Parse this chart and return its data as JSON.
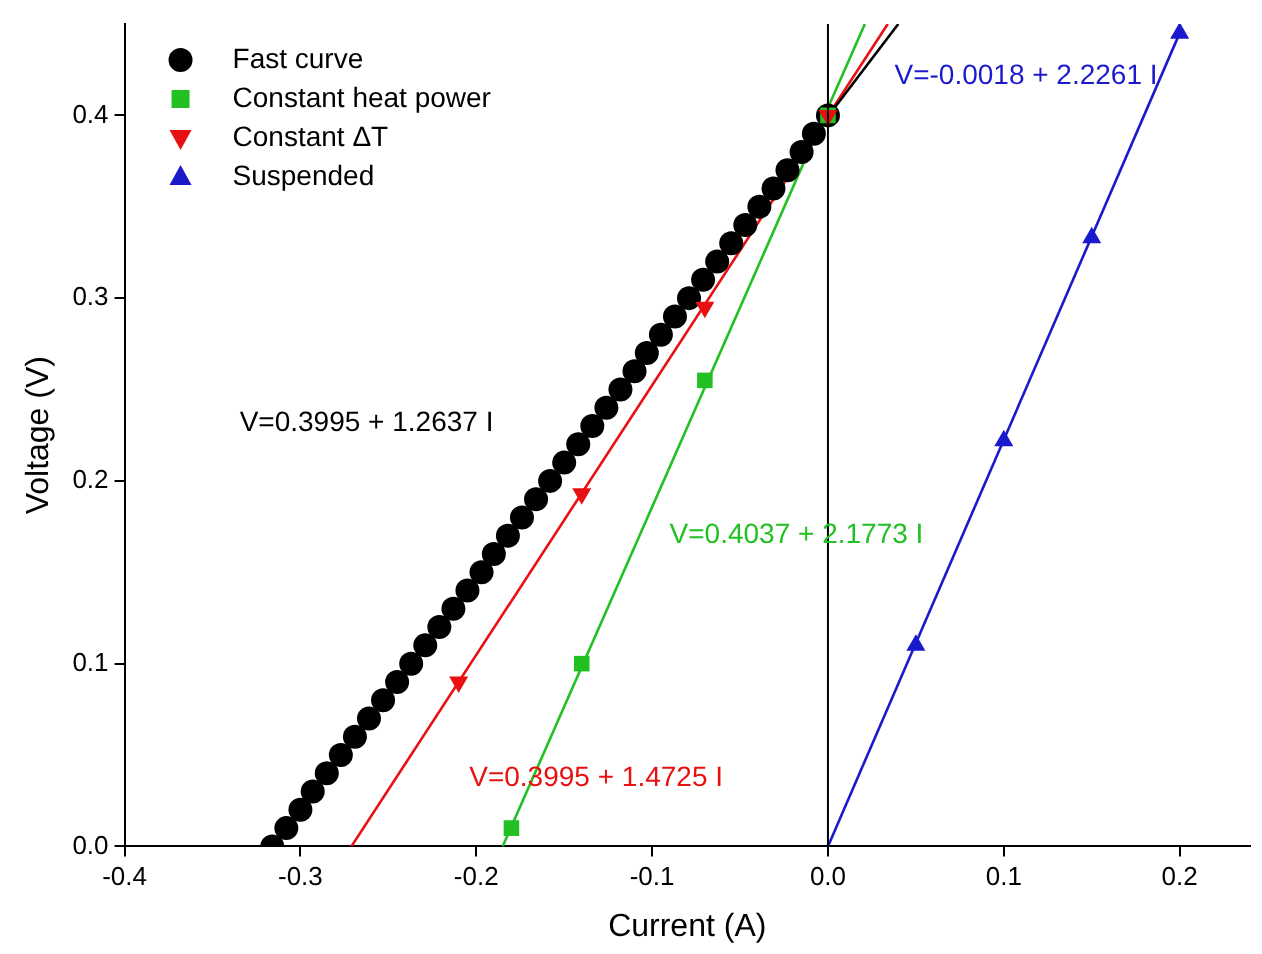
{
  "chart_data": {
    "type": "scatter",
    "xlabel": "Current (A)",
    "ylabel": "Voltage (V)",
    "xlim": [
      -0.4,
      0.24
    ],
    "ylim": [
      0,
      0.45
    ],
    "xticks": [
      -0.4,
      -0.3,
      -0.2,
      -0.1,
      {
        "value": 0,
        "label": "0.0"
      },
      0.1,
      0.2
    ],
    "yticks": [
      {
        "value": 0,
        "label": "0.0"
      },
      0.1,
      0.2,
      0.3,
      0.4
    ],
    "grid": false,
    "legend": "top left",
    "ref_lines": [
      {
        "axis": "x",
        "value": 0,
        "color": "#000000"
      }
    ],
    "series": [
      {
        "name": "Fast curve",
        "marker": "circle",
        "color": "#000000",
        "x": [
          -0.316,
          -0.308,
          -0.3,
          -0.293,
          -0.285,
          -0.277,
          -0.269,
          -0.261,
          -0.253,
          -0.245,
          -0.237,
          -0.229,
          -0.221,
          -0.213,
          -0.205,
          -0.197,
          -0.19,
          -0.182,
          -0.174,
          -0.166,
          -0.158,
          -0.15,
          -0.142,
          -0.134,
          -0.126,
          -0.118,
          -0.11,
          -0.103,
          -0.095,
          -0.087,
          -0.079,
          -0.071,
          -0.063,
          -0.055,
          -0.047,
          -0.039,
          -0.031,
          -0.023,
          -0.015,
          -0.008,
          0.0
        ],
        "values": [
          0,
          0.01,
          0.02,
          0.03,
          0.04,
          0.05,
          0.06,
          0.07,
          0.08,
          0.09,
          0.1,
          0.11,
          0.12,
          0.13,
          0.14,
          0.15,
          0.16,
          0.17,
          0.18,
          0.19,
          0.2,
          0.21,
          0.22,
          0.23,
          0.24,
          0.25,
          0.26,
          0.27,
          0.28,
          0.29,
          0.3,
          0.31,
          0.32,
          0.33,
          0.34,
          0.35,
          0.36,
          0.37,
          0.38,
          0.39,
          0.4
        ]
      },
      {
        "name": "Constant heat power",
        "marker": "square",
        "color": "#22c022",
        "x": [
          -0.18,
          -0.14,
          -0.07,
          0
        ],
        "values": [
          0.01,
          0.1,
          0.255,
          0.4
        ]
      },
      {
        "name": "Constant ΔT",
        "marker": "triangle_down",
        "color": "#e81010",
        "x": [
          -0.21,
          -0.14,
          -0.07,
          0
        ],
        "values": [
          0.09,
          0.193,
          0.295,
          0.4
        ]
      },
      {
        "name": "Suspended",
        "marker": "triangle",
        "color": "#1a1acc",
        "x": [
          0.05,
          0.1,
          0.15,
          0.2
        ],
        "values": [
          0.11,
          0.222,
          0.333,
          0.445
        ]
      },
      {
        "type": "line",
        "marker": "none",
        "color": "#000000",
        "x": [
          -0.316,
          0.04
        ],
        "values": [
          0,
          0.45
        ]
      },
      {
        "type": "line",
        "marker": "none",
        "color": "#22c022",
        "x": [
          -0.185,
          0.021
        ],
        "values": [
          0,
          0.45
        ]
      },
      {
        "type": "line",
        "marker": "none",
        "color": "#e81010",
        "x": [
          -0.271,
          0.034
        ],
        "values": [
          0,
          0.45
        ]
      },
      {
        "type": "line",
        "marker": "none",
        "color": "#1a1acc",
        "x": [
          0,
          0.2
        ],
        "values": [
          0,
          0.445
        ]
      }
    ],
    "annotations": [
      "V=0.3995 + 1.2637 I",
      "V=0.4037 + 2.1773 I",
      "V=0.3995 + 1.4725 I",
      "V=-0.0018 + 2.2261 I"
    ]
  }
}
